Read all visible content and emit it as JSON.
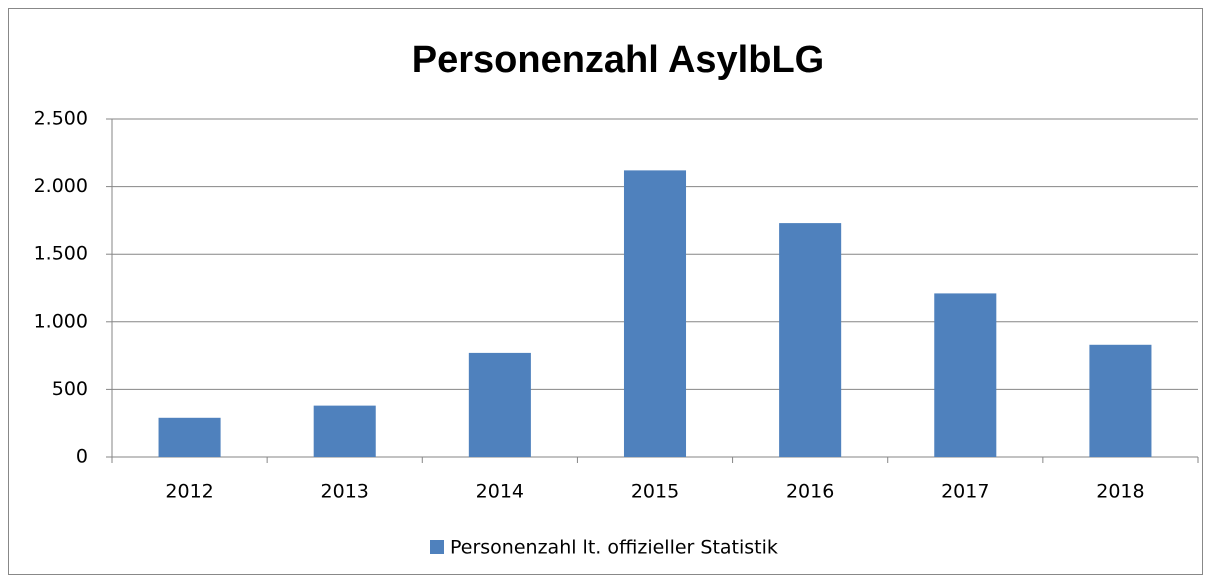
{
  "chart_data": {
    "type": "bar",
    "title": "Personenzahl AsylbLG",
    "categories": [
      "2012",
      "2013",
      "2014",
      "2015",
      "2016",
      "2017",
      "2018"
    ],
    "series": [
      {
        "name": "Personenzahl lt. offizieller Statistik",
        "color": "#4f81bd",
        "values": [
          290,
          380,
          770,
          2120,
          1730,
          1210,
          830
        ]
      }
    ],
    "ylim": [
      0,
      2500
    ],
    "yticks": [
      0,
      500,
      {
        "value": 1000,
        "label": "1.000"
      },
      {
        "value": 1500,
        "label": "1.500"
      },
      {
        "value": 2000,
        "label": "2.000"
      },
      {
        "value": 2500,
        "label": "2.500"
      }
    ],
    "grid": true,
    "legend": "bottom"
  }
}
